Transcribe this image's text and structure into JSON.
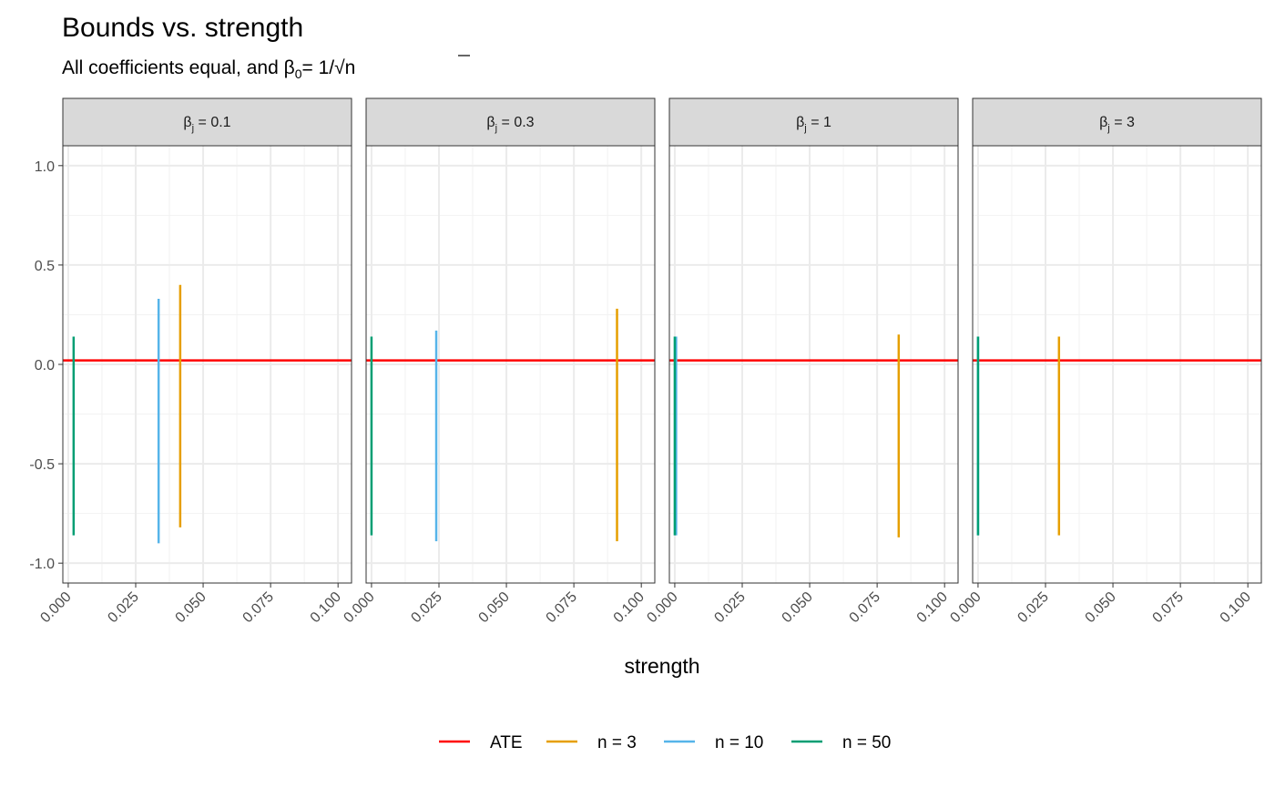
{
  "title": "Bounds vs. strength",
  "subtitle": {
    "prefix": "All coefficients equal, and ",
    "beta": "β",
    "sub": "0",
    "eq": "= 1/",
    "sqrt": "√",
    "n": "n"
  },
  "colors": {
    "ATE": "#ff0000",
    "n3": "#e69f00",
    "n10": "#56b4e9",
    "n50": "#009e73",
    "strip_bg": "#d9d9d9",
    "grid": "#ebebeb",
    "panel_border": "#333333"
  },
  "chart_data": {
    "type": "line",
    "title": "Bounds vs. strength",
    "xlabel": "strength",
    "ylabel": "",
    "xlim": [
      -0.002,
      0.105
    ],
    "ylim": [
      -1.1,
      1.1
    ],
    "x_ticks": [
      "0.000",
      "0.025",
      "0.050",
      "0.075",
      "0.100"
    ],
    "x_tick_values": [
      0,
      0.025,
      0.05,
      0.075,
      0.1
    ],
    "y_ticks": [
      "-1.0",
      "-0.5",
      "0.0",
      "0.5",
      "1.0"
    ],
    "y_tick_values": [
      -1.0,
      -0.5,
      0.0,
      0.5,
      1.0
    ],
    "ate_value": 0.02,
    "grid": true,
    "legend_position": "bottom",
    "legend": [
      {
        "key": "ATE",
        "label": "ATE",
        "color": "#ff0000"
      },
      {
        "key": "n3",
        "label": "n = 3",
        "color": "#e69f00"
      },
      {
        "key": "n10",
        "label": "n = 10",
        "color": "#56b4e9"
      },
      {
        "key": "n50",
        "label": "n = 50",
        "color": "#009e73"
      }
    ],
    "facets": [
      {
        "label_beta": "β",
        "label_sub": "j",
        "label_rest": " = 0.1",
        "series": [
          {
            "key": "n3",
            "x": 0.0415,
            "low": -0.82,
            "high": 0.4
          },
          {
            "key": "n10",
            "x": 0.0335,
            "low": -0.9,
            "high": 0.33
          },
          {
            "key": "n50",
            "x": 0.002,
            "low": -0.86,
            "high": 0.14
          }
        ]
      },
      {
        "label_beta": "β",
        "label_sub": "j",
        "label_rest": " = 0.3",
        "series": [
          {
            "key": "n3",
            "x": 0.091,
            "low": -0.89,
            "high": 0.28
          },
          {
            "key": "n10",
            "x": 0.024,
            "low": -0.89,
            "high": 0.17
          },
          {
            "key": "n50",
            "x": 0.0,
            "low": -0.86,
            "high": 0.14
          }
        ]
      },
      {
        "label_beta": "β",
        "label_sub": "j",
        "label_rest": " = 1",
        "series": [
          {
            "key": "n3",
            "x": 0.083,
            "low": -0.87,
            "high": 0.15
          },
          {
            "key": "n10",
            "x": 0.0005,
            "low": -0.86,
            "high": 0.14
          },
          {
            "key": "n50",
            "x": 0.0,
            "low": -0.86,
            "high": 0.14
          }
        ]
      },
      {
        "label_beta": "β",
        "label_sub": "j",
        "label_rest": " = 3",
        "series": [
          {
            "key": "n3",
            "x": 0.03,
            "low": -0.86,
            "high": 0.14
          },
          {
            "key": "n10",
            "x": 0.0,
            "low": -0.86,
            "high": 0.14
          },
          {
            "key": "n50",
            "x": 0.0,
            "low": -0.86,
            "high": 0.14
          }
        ]
      }
    ]
  }
}
